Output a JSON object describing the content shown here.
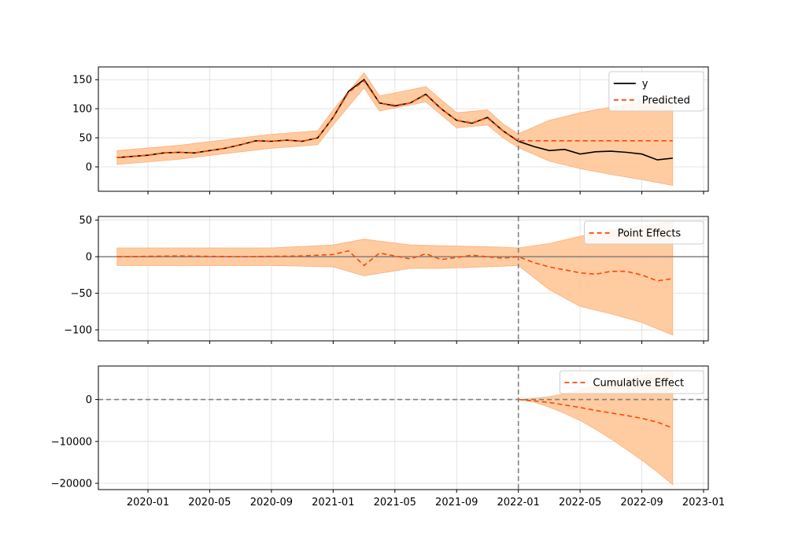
{
  "chart_data": [
    {
      "type": "line",
      "panel": "top",
      "title": "",
      "xlabel": "",
      "ylabel": "",
      "ylim": [
        -42,
        172
      ],
      "yticks": [
        0,
        50,
        100,
        150
      ],
      "grid": true,
      "legend_placement": "top-right",
      "intervention_date": "2022-01",
      "series": [
        {
          "name": "y",
          "color": "#000000",
          "style": "solid",
          "points": [
            [
              "2019-11",
              16
            ],
            [
              "2019-12",
              18
            ],
            [
              "2020-01",
              20
            ],
            [
              "2020-02",
              24
            ],
            [
              "2020-03",
              25
            ],
            [
              "2020-04",
              24
            ],
            [
              "2020-05",
              28
            ],
            [
              "2020-06",
              32
            ],
            [
              "2020-07",
              38
            ],
            [
              "2020-08",
              45
            ],
            [
              "2020-09",
              44
            ],
            [
              "2020-10",
              46
            ],
            [
              "2020-11",
              44
            ],
            [
              "2020-12",
              50
            ],
            [
              "2021-01",
              85
            ],
            [
              "2021-02",
              130
            ],
            [
              "2021-03",
              150
            ],
            [
              "2021-04",
              110
            ],
            [
              "2021-05",
              105
            ],
            [
              "2021-06",
              110
            ],
            [
              "2021-07",
              125
            ],
            [
              "2021-08",
              100
            ],
            [
              "2021-09",
              80
            ],
            [
              "2021-10",
              75
            ],
            [
              "2021-11",
              85
            ],
            [
              "2021-12",
              62
            ],
            [
              "2022-01",
              44
            ],
            [
              "2022-02",
              35
            ],
            [
              "2022-03",
              28
            ],
            [
              "2022-04",
              30
            ],
            [
              "2022-05",
              22
            ],
            [
              "2022-06",
              26
            ],
            [
              "2022-07",
              27
            ],
            [
              "2022-08",
              25
            ],
            [
              "2022-09",
              22
            ],
            [
              "2022-10",
              12
            ],
            [
              "2022-11",
              15
            ]
          ]
        },
        {
          "name": "Predicted",
          "color": "#ff4500",
          "style": "dashed",
          "points": [
            [
              "2019-11",
              16
            ],
            [
              "2019-12",
              18
            ],
            [
              "2020-01",
              20
            ],
            [
              "2020-02",
              24
            ],
            [
              "2020-03",
              25
            ],
            [
              "2020-04",
              24
            ],
            [
              "2020-05",
              28
            ],
            [
              "2020-06",
              32
            ],
            [
              "2020-07",
              38
            ],
            [
              "2020-08",
              45
            ],
            [
              "2020-09",
              44
            ],
            [
              "2020-10",
              46
            ],
            [
              "2020-11",
              44
            ],
            [
              "2020-12",
              50
            ],
            [
              "2021-01",
              85
            ],
            [
              "2021-02",
              128
            ],
            [
              "2021-03",
              148
            ],
            [
              "2021-04",
              110
            ],
            [
              "2021-05",
              106
            ],
            [
              "2021-06",
              110
            ],
            [
              "2021-07",
              124
            ],
            [
              "2021-08",
              100
            ],
            [
              "2021-09",
              80
            ],
            [
              "2021-10",
              76
            ],
            [
              "2021-11",
              84
            ],
            [
              "2021-12",
              62
            ],
            [
              "2022-01",
              45
            ],
            [
              "2022-02",
              45
            ],
            [
              "2022-03",
              45
            ],
            [
              "2022-04",
              45
            ],
            [
              "2022-05",
              45
            ],
            [
              "2022-06",
              45
            ],
            [
              "2022-07",
              45
            ],
            [
              "2022-08",
              45
            ],
            [
              "2022-09",
              45
            ],
            [
              "2022-10",
              45
            ],
            [
              "2022-11",
              45
            ]
          ]
        }
      ],
      "band": {
        "color": "#ffc89c",
        "lower": [
          [
            "2019-11",
            4
          ],
          [
            "2020-03",
            13
          ],
          [
            "2020-07",
            26
          ],
          [
            "2020-09",
            32
          ],
          [
            "2020-12",
            38
          ],
          [
            "2021-01",
            72
          ],
          [
            "2021-03",
            136
          ],
          [
            "2021-04",
            96
          ],
          [
            "2021-07",
            112
          ],
          [
            "2021-09",
            67
          ],
          [
            "2021-11",
            72
          ],
          [
            "2021-12",
            50
          ],
          [
            "2022-01",
            33
          ],
          [
            "2022-03",
            10
          ],
          [
            "2022-05",
            -3
          ],
          [
            "2022-07",
            -13
          ],
          [
            "2022-09",
            -22
          ],
          [
            "2022-11",
            -32
          ]
        ],
        "upper": [
          [
            "2019-11",
            28
          ],
          [
            "2020-03",
            37
          ],
          [
            "2020-07",
            50
          ],
          [
            "2020-09",
            56
          ],
          [
            "2020-12",
            62
          ],
          [
            "2021-01",
            98
          ],
          [
            "2021-03",
            162
          ],
          [
            "2021-04",
            122
          ],
          [
            "2021-07",
            138
          ],
          [
            "2021-09",
            93
          ],
          [
            "2021-11",
            98
          ],
          [
            "2021-12",
            74
          ],
          [
            "2022-01",
            57
          ],
          [
            "2022-03",
            80
          ],
          [
            "2022-05",
            93
          ],
          [
            "2022-07",
            103
          ],
          [
            "2022-09",
            112
          ],
          [
            "2022-11",
            120
          ]
        ]
      }
    },
    {
      "type": "line",
      "panel": "middle",
      "title": "",
      "xlabel": "",
      "ylabel": "",
      "ylim": [
        -115,
        55
      ],
      "yticks": [
        -100,
        -50,
        0,
        50
      ],
      "grid": true,
      "legend_placement": "top-right",
      "intervention_date": "2022-01",
      "zero_line": true,
      "series": [
        {
          "name": "Point Effects",
          "color": "#ff4500",
          "style": "dashed",
          "points": [
            [
              "2019-11",
              0
            ],
            [
              "2020-03",
              1
            ],
            [
              "2020-07",
              0
            ],
            [
              "2020-11",
              1
            ],
            [
              "2021-01",
              3
            ],
            [
              "2021-02",
              8
            ],
            [
              "2021-03",
              -12
            ],
            [
              "2021-04",
              5
            ],
            [
              "2021-06",
              -3
            ],
            [
              "2021-07",
              4
            ],
            [
              "2021-08",
              -4
            ],
            [
              "2021-10",
              2
            ],
            [
              "2021-12",
              -2
            ],
            [
              "2022-01",
              0
            ],
            [
              "2022-02",
              -8
            ],
            [
              "2022-03",
              -14
            ],
            [
              "2022-04",
              -18
            ],
            [
              "2022-05",
              -22
            ],
            [
              "2022-06",
              -24
            ],
            [
              "2022-07",
              -20
            ],
            [
              "2022-08",
              -20
            ],
            [
              "2022-09",
              -25
            ],
            [
              "2022-10",
              -33
            ],
            [
              "2022-11",
              -30
            ]
          ]
        }
      ],
      "band": {
        "color": "#ffc89c",
        "lower": [
          [
            "2019-11",
            -12
          ],
          [
            "2020-09",
            -12
          ],
          [
            "2021-01",
            -14
          ],
          [
            "2021-03",
            -26
          ],
          [
            "2021-06",
            -16
          ],
          [
            "2021-08",
            -16
          ],
          [
            "2021-12",
            -13
          ],
          [
            "2022-01",
            -12
          ],
          [
            "2022-03",
            -45
          ],
          [
            "2022-05",
            -68
          ],
          [
            "2022-07",
            -78
          ],
          [
            "2022-09",
            -90
          ],
          [
            "2022-11",
            -107
          ]
        ],
        "upper": [
          [
            "2019-11",
            12
          ],
          [
            "2020-09",
            12
          ],
          [
            "2021-01",
            16
          ],
          [
            "2021-03",
            24
          ],
          [
            "2021-06",
            16
          ],
          [
            "2021-08",
            15
          ],
          [
            "2021-12",
            13
          ],
          [
            "2022-01",
            12
          ],
          [
            "2022-03",
            18
          ],
          [
            "2022-05",
            28
          ],
          [
            "2022-07",
            36
          ],
          [
            "2022-09",
            42
          ],
          [
            "2022-11",
            48
          ]
        ]
      }
    },
    {
      "type": "line",
      "panel": "bottom",
      "title": "",
      "xlabel": "",
      "ylabel": "",
      "ylim": [
        -21500,
        8000
      ],
      "yticks": [
        -20000,
        -10000,
        0
      ],
      "grid": true,
      "legend_placement": "top-right",
      "intervention_date": "2022-01",
      "dashed_zero_line": true,
      "series": [
        {
          "name": "Cumulative Effect",
          "color": "#ff4500",
          "style": "dashed",
          "points": [
            [
              "2022-01",
              0
            ],
            [
              "2022-02",
              -300
            ],
            [
              "2022-03",
              -700
            ],
            [
              "2022-04",
              -1300
            ],
            [
              "2022-05",
              -1900
            ],
            [
              "2022-06",
              -2600
            ],
            [
              "2022-07",
              -3200
            ],
            [
              "2022-08",
              -3800
            ],
            [
              "2022-09",
              -4500
            ],
            [
              "2022-10",
              -5400
            ],
            [
              "2022-11",
              -6800
            ]
          ]
        }
      ],
      "band": {
        "color": "#ffc89c",
        "lower": [
          [
            "2022-01",
            0
          ],
          [
            "2022-02",
            -600
          ],
          [
            "2022-03",
            -1800
          ],
          [
            "2022-04",
            -3300
          ],
          [
            "2022-05",
            -5000
          ],
          [
            "2022-06",
            -7100
          ],
          [
            "2022-07",
            -9400
          ],
          [
            "2022-08",
            -11900
          ],
          [
            "2022-09",
            -14500
          ],
          [
            "2022-10",
            -17300
          ],
          [
            "2022-11",
            -20300
          ]
        ],
        "upper": [
          [
            "2022-01",
            0
          ],
          [
            "2022-02",
            300
          ],
          [
            "2022-03",
            700
          ],
          [
            "2022-04",
            1400
          ],
          [
            "2022-05",
            2300
          ],
          [
            "2022-06",
            3300
          ],
          [
            "2022-07",
            4200
          ],
          [
            "2022-08",
            5100
          ],
          [
            "2022-09",
            5800
          ],
          [
            "2022-10",
            6300
          ],
          [
            "2022-11",
            6700
          ]
        ]
      }
    }
  ],
  "x_axis": {
    "tick_labels": [
      "2020-01",
      "2020-05",
      "2020-09",
      "2021-01",
      "2021-05",
      "2021-09",
      "2022-01",
      "2022-05",
      "2022-09",
      "2023-01"
    ],
    "range": [
      "2019-09",
      "2023-01"
    ]
  }
}
